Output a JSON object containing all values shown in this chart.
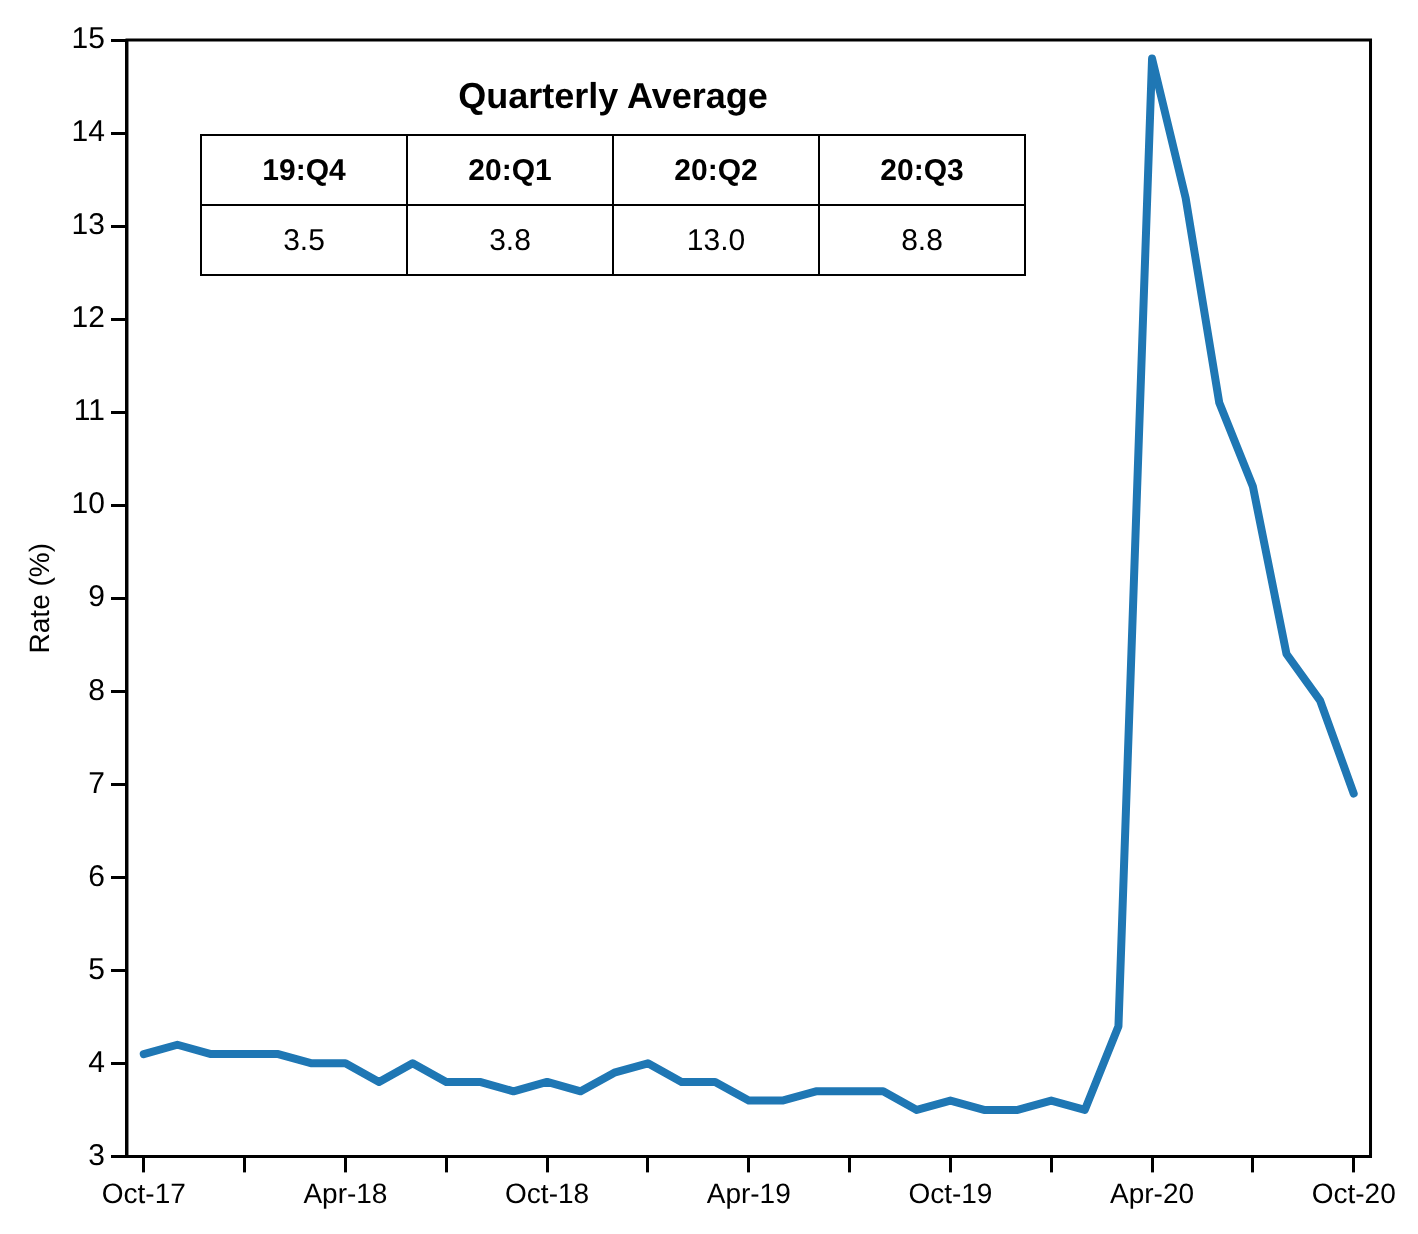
{
  "chart_data": {
    "type": "line",
    "ylabel": "Rate (%)",
    "categories": [
      "Oct-17",
      null,
      null,
      null,
      null,
      null,
      "Apr-18",
      null,
      null,
      null,
      null,
      null,
      "Oct-18",
      null,
      null,
      null,
      null,
      null,
      "Apr-19",
      null,
      null,
      null,
      null,
      null,
      "Oct-19",
      null,
      null,
      null,
      null,
      null,
      "Apr-20",
      null,
      null,
      null,
      null,
      null,
      "Oct-20"
    ],
    "series": [
      {
        "color": "#1f77b4",
        "values": [
          4.1,
          4.2,
          4.1,
          4.1,
          4.1,
          4.0,
          4.0,
          3.8,
          4.0,
          3.8,
          3.8,
          3.7,
          3.8,
          3.7,
          3.9,
          4.0,
          3.8,
          3.8,
          3.6,
          3.6,
          3.7,
          3.7,
          3.7,
          3.5,
          3.6,
          3.5,
          3.5,
          3.6,
          3.5,
          4.4,
          14.8,
          13.3,
          11.1,
          10.2,
          8.4,
          7.9,
          6.9
        ]
      }
    ],
    "ylim": [
      3,
      15
    ],
    "yticks": [
      3,
      4,
      5,
      6,
      7,
      8,
      9,
      10,
      11,
      12,
      13,
      14,
      15
    ],
    "grid": false,
    "legend": false,
    "marker": "none",
    "line_style": "solid",
    "annotations": [
      "Quarterly Average",
      "19:Q4",
      "20:Q1",
      "20:Q2",
      "20:Q3",
      "3.5",
      "3.8",
      "13.0",
      "8.8"
    ]
  }
}
